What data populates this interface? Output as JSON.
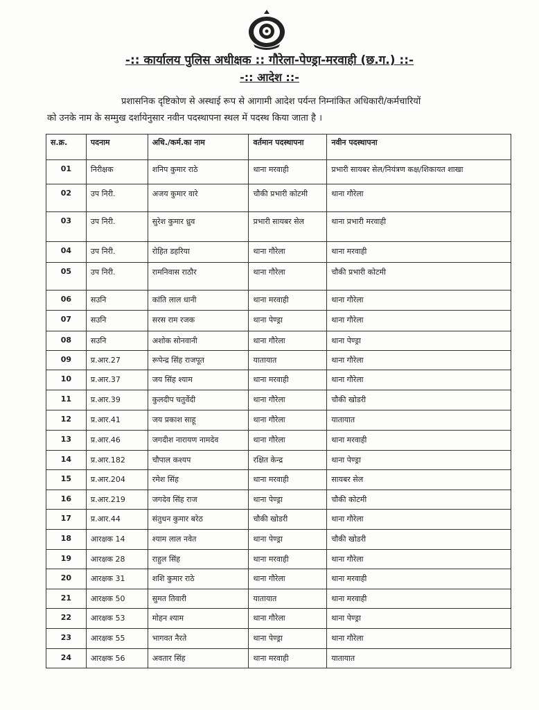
{
  "header": {
    "emblem": "police-emblem",
    "title": "-:: कार्यालय पुलिस अधीक्षक :: गौरेला-पेण्ड्रा-मरवाही (छ.ग.) ::-",
    "subtitle": "-:: आदेश ::-",
    "para_line1": "प्रशासनिक दृष्टिकोण से अस्थाई रूप से आगामी आदेश पर्यन्त निम्नांकित अधिकारी/कर्मचारियों",
    "para_line2": "को उनके नाम के सम्मुख दर्शायेनुसार नवीन पदस्थापना स्थल में पदस्थ किया जाता है ।"
  },
  "table": {
    "columns": [
      "स.क्र.",
      "पदनाम",
      "अधि./कर्म.का नाम",
      "वर्तमान पदस्थापना",
      "नवीन पदस्थापना"
    ],
    "rows": [
      [
        "01",
        "निरीक्षक",
        "शनिप कुमार राठे",
        "थाना मरवाही",
        "प्रभारी सायबर सेल/नियंत्रण कक्ष/शिकायत शाखा"
      ],
      [
        "02",
        "उप निरी.",
        "अजय कुमार वारे",
        "चौकी प्रभारी कोटमी",
        "थाना गौरेला"
      ],
      [
        "03",
        "उप निरी.",
        "सुरेश कुमार ध्रुव",
        "प्रभारी सायबर सेल",
        "थाना प्रभारी मरवाही"
      ],
      [
        "04",
        "उप निरी.",
        "रोहित डहरिया",
        "थाना गौरेला",
        "थाना मरवाही"
      ],
      [
        "05",
        "उप निरी.",
        "रामनिवास राठौर",
        "थाना गौरेला",
        "चौकी प्रभारी कोटमी"
      ],
      [
        "06",
        "सउनि",
        "कांति लाल धानी",
        "थाना मरवाही",
        "थाना गौरेला"
      ],
      [
        "07",
        "सउनि",
        "सरस राम रजक",
        "थाना पेण्ड्रा",
        "थाना गौरेला"
      ],
      [
        "08",
        "सउनि",
        "अशोक सोनवानी",
        "थाना गौरेला",
        "थाना पेण्ड्रा"
      ],
      [
        "09",
        "प्र.आर.27",
        "रूपेन्द्र सिंह राजपूत",
        "यातायात",
        "थाना गौरेला"
      ],
      [
        "10",
        "प्र.आर.37",
        "जय सिंह श्याम",
        "थाना मरवाही",
        "थाना गौरेला"
      ],
      [
        "11",
        "प्र.आर.39",
        "कुलदीप चतुर्वेदी",
        "थाना गौरेला",
        "चौकी खोडरी"
      ],
      [
        "12",
        "प्र.आर.41",
        "जय प्रकाश साहू",
        "थाना गौरेला",
        "यातायात"
      ],
      [
        "13",
        "प्र.आर.46",
        "जगदीश नारायण नामदेव",
        "थाना गौरेला",
        "थाना मरवाही"
      ],
      [
        "14",
        "प्र.आर.182",
        "चौपाल कश्यप",
        "रक्षित केन्द्र",
        "थाना पेण्ड्रा"
      ],
      [
        "15",
        "प्र.आर.204",
        "रमेश सिंह",
        "थाना मरवाही",
        "सायबर सेल"
      ],
      [
        "16",
        "प्र.आर.219",
        "जगदेव सिंह राज",
        "थाना पेण्ड्रा",
        "चौकी कोटमी"
      ],
      [
        "17",
        "प्र.आर.44",
        "संतुधन कुमार बरेठ",
        "चौकी खोडरी",
        "थाना गौरेला"
      ],
      [
        "18",
        "आरक्षक 14",
        "श्याम लाल नवेत",
        "थाना पेण्ड्रा",
        "चौकी खोडरी"
      ],
      [
        "19",
        "आरक्षक 28",
        "राहुल सिंह",
        "थाना मरवाही",
        "थाना गौरेला"
      ],
      [
        "20",
        "आरक्षक 31",
        "शशि कुमार राठे",
        "थाना गौरेला",
        "थाना मरवाही"
      ],
      [
        "21",
        "आरक्षक 50",
        "सुमत तिवारी",
        "यातायात",
        "थाना मरवाही"
      ],
      [
        "22",
        "आरक्षक 53",
        "मोहन श्याम",
        "थाना गौरेला",
        "थाना पेण्ड्रा"
      ],
      [
        "23",
        "आरक्षक 55",
        "भागवत नैरते",
        "थाना पेण्ड्रा",
        "थाना गौरेला"
      ],
      [
        "24",
        "आरक्षक 56",
        "अवतार सिंह",
        "थाना मरवाही",
        "यातायात"
      ]
    ]
  }
}
